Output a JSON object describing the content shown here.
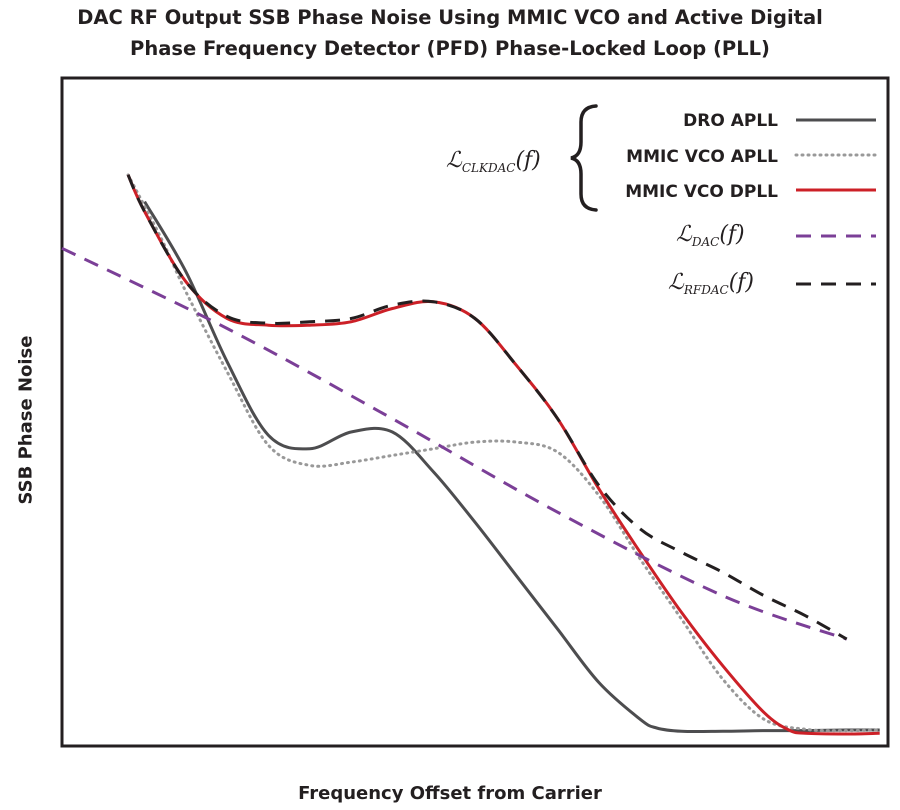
{
  "chart_data": {
    "type": "line",
    "title_line1": "DAC RF Output SSB Phase Noise Using MMIC VCO and Active Digital",
    "title_line2": "Phase Frequency Detector (PFD) Phase-Locked Loop (PLL)",
    "xlabel": "Frequency Offset from Carrier",
    "ylabel": "SSB Phase Noise",
    "xlim": [
      0,
      1
    ],
    "ylim": [
      0,
      1
    ],
    "grid": false,
    "legend_position": "top-right",
    "legend": {
      "group_label_script": "ℒ",
      "group_label_subscript": "CLKDAC",
      "group_label_arg": "(f)",
      "dac_label_script": "ℒ",
      "dac_label_subscript": "DAC",
      "dac_label_arg": "(f)",
      "rfdac_label_script": "ℒ",
      "rfdac_label_subscript": "RFDAC",
      "rfdac_label_arg": "(f)"
    },
    "series": [
      {
        "name": "DRO APLL",
        "color": "#4d4d4f",
        "style": "solid",
        "x": [
          0.1,
          0.15,
          0.2,
          0.25,
          0.3,
          0.35,
          0.4,
          0.45,
          0.5,
          0.55,
          0.6,
          0.65,
          0.7,
          0.72,
          0.75,
          0.8,
          0.85,
          0.9,
          0.95,
          0.99
        ],
        "y": [
          0.815,
          0.71,
          0.575,
          0.465,
          0.445,
          0.47,
          0.47,
          0.41,
          0.335,
          0.255,
          0.175,
          0.095,
          0.04,
          0.027,
          0.022,
          0.022,
          0.023,
          0.023,
          0.024,
          0.024
        ]
      },
      {
        "name": "MMIC VCO APLL",
        "color": "#999999",
        "style": "dotted",
        "x": [
          0.08,
          0.12,
          0.15,
          0.2,
          0.25,
          0.3,
          0.35,
          0.4,
          0.45,
          0.5,
          0.55,
          0.6,
          0.65,
          0.7,
          0.75,
          0.8,
          0.85,
          0.9,
          0.95,
          0.99
        ],
        "y": [
          0.855,
          0.76,
          0.68,
          0.56,
          0.45,
          0.42,
          0.425,
          0.435,
          0.445,
          0.455,
          0.455,
          0.44,
          0.375,
          0.28,
          0.19,
          0.1,
          0.04,
          0.025,
          0.023,
          0.024
        ]
      },
      {
        "name": "MMIC VCO DPLL",
        "color": "#cc2027",
        "style": "solid",
        "x": [
          0.08,
          0.1,
          0.15,
          0.2,
          0.25,
          0.3,
          0.35,
          0.4,
          0.45,
          0.5,
          0.55,
          0.6,
          0.65,
          0.7,
          0.75,
          0.8,
          0.85,
          0.88,
          0.9,
          0.95,
          0.99
        ],
        "y": [
          0.855,
          0.8,
          0.695,
          0.64,
          0.63,
          0.63,
          0.635,
          0.655,
          0.665,
          0.64,
          0.57,
          0.49,
          0.385,
          0.29,
          0.2,
          0.12,
          0.05,
          0.024,
          0.019,
          0.018,
          0.019
        ]
      },
      {
        "name": "ℒDAC(f)",
        "color": "#7b3f97",
        "style": "dashed",
        "x": [
          0.0,
          0.2,
          0.4,
          0.6,
          0.8,
          0.95
        ],
        "y": [
          0.745,
          0.625,
          0.49,
          0.35,
          0.225,
          0.16
        ]
      },
      {
        "name": "ℒRFDAC(f)",
        "color": "#231f20",
        "style": "dashed",
        "x": [
          0.08,
          0.1,
          0.15,
          0.2,
          0.25,
          0.3,
          0.35,
          0.4,
          0.45,
          0.5,
          0.55,
          0.6,
          0.65,
          0.7,
          0.75,
          0.8,
          0.85,
          0.9,
          0.95
        ],
        "y": [
          0.855,
          0.8,
          0.695,
          0.643,
          0.633,
          0.635,
          0.64,
          0.66,
          0.665,
          0.64,
          0.57,
          0.49,
          0.39,
          0.325,
          0.29,
          0.26,
          0.225,
          0.195,
          0.16
        ]
      }
    ]
  }
}
